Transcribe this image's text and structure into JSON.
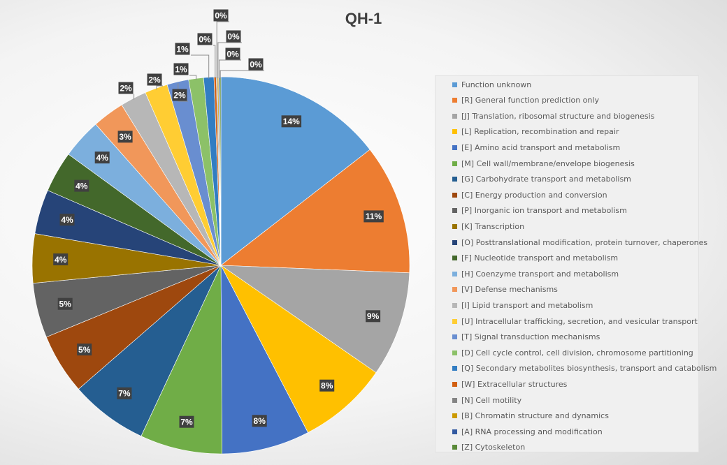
{
  "chart_data": {
    "type": "pie",
    "title": "QH-1",
    "legend_position": "right",
    "slices": [
      {
        "name": "Function unknown",
        "label": "14%",
        "value": 14.8,
        "color": "#5b9bd5"
      },
      {
        "name": "[R] General function prediction only",
        "label": "11%",
        "value": 11.4,
        "color": "#ed7d31"
      },
      {
        "name": "[J] Translation, ribosomal structure and biogenesis",
        "label": "9%",
        "value": 9.2,
        "color": "#a5a5a5"
      },
      {
        "name": "[L] Replication, recombination and repair",
        "label": "8%",
        "value": 7.9,
        "color": "#ffc000"
      },
      {
        "name": "[E] Amino acid transport and metabolism",
        "label": "8%",
        "value": 7.7,
        "color": "#4472c4"
      },
      {
        "name": "[M] Cell wall/membrane/envelope biogenesis",
        "label": "7%",
        "value": 7.2,
        "color": "#70ad47"
      },
      {
        "name": "[G] Carbohydrate transport and metabolism",
        "label": "7%",
        "value": 6.8,
        "color": "#255e91"
      },
      {
        "name": "[C] Energy production and conversion",
        "label": "5%",
        "value": 5.3,
        "color": "#9e480e"
      },
      {
        "name": "[P] Inorganic ion transport and metabolism",
        "label": "5%",
        "value": 4.8,
        "color": "#636363"
      },
      {
        "name": "[K] Transcription",
        "label": "4%",
        "value": 4.3,
        "color": "#997300"
      },
      {
        "name": "[O] Posttranslational modification, protein turnover, chaperones",
        "label": "4%",
        "value": 3.9,
        "color": "#264478"
      },
      {
        "name": "[F] Nucleotide transport and metabolism",
        "label": "4%",
        "value": 3.6,
        "color": "#43682b"
      },
      {
        "name": "[H] Coenzyme transport and metabolism",
        "label": "4%",
        "value": 3.5,
        "color": "#7cafdd"
      },
      {
        "name": "[V] Defense mechanisms",
        "label": "3%",
        "value": 2.8,
        "color": "#f1975a"
      },
      {
        "name": "[I] Lipid transport and metabolism",
        "label": "2%",
        "value": 2.3,
        "color": "#b7b7b7"
      },
      {
        "name": "[U] Intracellular trafficking, secretion, and vesicular transport",
        "label": "2%",
        "value": 2.0,
        "color": "#ffcd33"
      },
      {
        "name": "[T] Signal transduction mechanisms",
        "label": "2%",
        "value": 1.9,
        "color": "#698ed0"
      },
      {
        "name": "[D] Cell cycle control, cell division, chromosome partitioning",
        "label": "1%",
        "value": 1.3,
        "color": "#8cc168"
      },
      {
        "name": "[Q] Secondary metabolites biosynthesis, transport and catabolism",
        "label": "1%",
        "value": 0.9,
        "color": "#327dc2"
      },
      {
        "name": "[W] Extracellular structures",
        "label": "0%",
        "value": 0.2,
        "color": "#d26012"
      },
      {
        "name": "[N] Cell motility",
        "label": "0%",
        "value": 0.1,
        "color": "#848484"
      },
      {
        "name": "[B] Chromatin structure and dynamics",
        "label": "0%",
        "value": 0.1,
        "color": "#cc9a00"
      },
      {
        "name": "[A] RNA processing and modification",
        "label": "0%",
        "value": 0.1,
        "color": "#335aa1"
      },
      {
        "name": "[Z] Cytoskeleton",
        "label": "0%",
        "value": 0.1,
        "color": "#5a8a39"
      }
    ]
  }
}
